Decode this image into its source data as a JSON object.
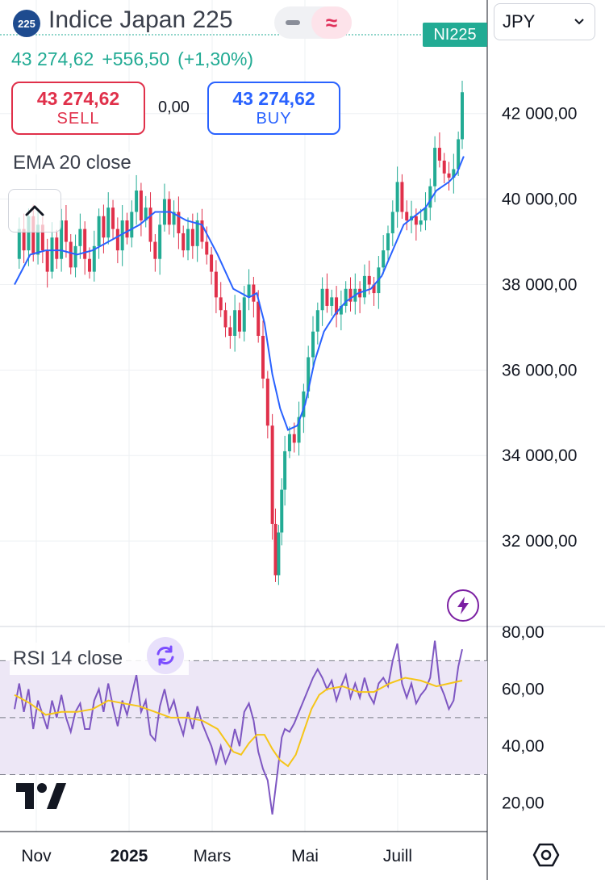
{
  "header": {
    "badge": "225",
    "title": "Indice Japan 225",
    "wave_icon": "≈",
    "currency": "JPY",
    "ticker_tag": "NI225"
  },
  "price": {
    "last": "43 274,62",
    "change": "+556,50",
    "change_pct": "(+1,30%)",
    "color_up": "#22ab94",
    "color_down": "#e0304a"
  },
  "trade": {
    "sell_value": "43 274,62",
    "sell_label": "SELL",
    "spread": "0,00",
    "buy_value": "43 274,62",
    "buy_label": "BUY"
  },
  "indicators": {
    "ema_label": "EMA 20 close",
    "rsi_label": "RSI 14 close"
  },
  "icons": {
    "collapse": "chevron-up-icon",
    "bolt": "lightning-icon",
    "refresh": "refresh-icon",
    "logo": "tradingview-logo",
    "settings": "hexagon-settings-icon"
  },
  "chart_data": [
    {
      "type": "candlestick",
      "title": "Indice Japan 225",
      "ylim": [
        30000,
        43600
      ],
      "yticks": [
        "42 000,00",
        "40 000,00",
        "38 000,00",
        "36 000,00",
        "34 000,00",
        "32 000,00"
      ],
      "ytick_values": [
        42000,
        40000,
        38000,
        36000,
        34000,
        32000
      ],
      "xticks": [
        "Nov",
        "2025",
        "Mars",
        "Mai",
        "Juill"
      ],
      "colors": {
        "up": "#22ab94",
        "down": "#e0304a",
        "ema": "#2962ff"
      },
      "grid": true,
      "path_close": [
        [
          0,
          38600
        ],
        [
          6,
          39300
        ],
        [
          12,
          38800
        ],
        [
          18,
          39600
        ],
        [
          24,
          38700
        ],
        [
          30,
          39400
        ],
        [
          36,
          38800
        ],
        [
          42,
          38300
        ],
        [
          48,
          39100
        ],
        [
          54,
          38600
        ],
        [
          60,
          39500
        ],
        [
          66,
          39000
        ],
        [
          72,
          38400
        ],
        [
          78,
          38900
        ],
        [
          84,
          39300
        ],
        [
          90,
          38600
        ],
        [
          96,
          38300
        ],
        [
          102,
          38900
        ],
        [
          108,
          39600
        ],
        [
          114,
          39100
        ],
        [
          120,
          39800
        ],
        [
          126,
          39300
        ],
        [
          132,
          38800
        ],
        [
          138,
          39500
        ],
        [
          144,
          39100
        ],
        [
          150,
          39700
        ],
        [
          156,
          40200
        ],
        [
          162,
          39500
        ],
        [
          168,
          39800
        ],
        [
          174,
          39000
        ],
        [
          180,
          38600
        ],
        [
          186,
          39400
        ],
        [
          192,
          40000
        ],
        [
          198,
          39400
        ],
        [
          204,
          39700
        ],
        [
          210,
          39200
        ],
        [
          216,
          38800
        ],
        [
          222,
          39300
        ],
        [
          228,
          38900
        ],
        [
          234,
          39500
        ],
        [
          240,
          39000
        ],
        [
          246,
          38700
        ],
        [
          252,
          38300
        ],
        [
          258,
          37700
        ],
        [
          264,
          37400
        ],
        [
          270,
          37000
        ],
        [
          276,
          36800
        ],
        [
          282,
          37400
        ],
        [
          288,
          36900
        ],
        [
          294,
          37700
        ],
        [
          300,
          38000
        ],
        [
          306,
          37600
        ],
        [
          312,
          36800
        ],
        [
          318,
          35800
        ],
        [
          324,
          34700
        ],
        [
          330,
          32400
        ],
        [
          334,
          31200
        ],
        [
          338,
          32200
        ],
        [
          342,
          33200
        ],
        [
          346,
          34100
        ],
        [
          352,
          34500
        ],
        [
          358,
          34300
        ],
        [
          364,
          34900
        ],
        [
          370,
          35500
        ],
        [
          376,
          36300
        ],
        [
          382,
          36900
        ],
        [
          388,
          37400
        ],
        [
          394,
          37900
        ],
        [
          400,
          37500
        ],
        [
          406,
          37700
        ],
        [
          412,
          37300
        ],
        [
          418,
          37500
        ],
        [
          424,
          37900
        ],
        [
          430,
          37600
        ],
        [
          436,
          37900
        ],
        [
          442,
          37700
        ],
        [
          448,
          38200
        ],
        [
          454,
          38000
        ],
        [
          460,
          37800
        ],
        [
          466,
          38400
        ],
        [
          472,
          38800
        ],
        [
          478,
          39200
        ],
        [
          484,
          39700
        ],
        [
          490,
          40400
        ],
        [
          496,
          39700
        ],
        [
          502,
          39500
        ],
        [
          508,
          39600
        ],
        [
          514,
          39400
        ],
        [
          520,
          39500
        ],
        [
          526,
          39800
        ],
        [
          532,
          40300
        ],
        [
          538,
          41200
        ],
        [
          544,
          40900
        ],
        [
          550,
          40600
        ],
        [
          556,
          40500
        ],
        [
          562,
          40700
        ],
        [
          568,
          41400
        ],
        [
          573,
          42500
        ]
      ],
      "ema": [
        [
          0,
          38000
        ],
        [
          20,
          38700
        ],
        [
          40,
          38800
        ],
        [
          60,
          38800
        ],
        [
          80,
          38700
        ],
        [
          100,
          38800
        ],
        [
          120,
          39000
        ],
        [
          140,
          39200
        ],
        [
          160,
          39400
        ],
        [
          180,
          39700
        ],
        [
          200,
          39700
        ],
        [
          220,
          39500
        ],
        [
          240,
          39400
        ],
        [
          260,
          38700
        ],
        [
          280,
          37900
        ],
        [
          300,
          37700
        ],
        [
          310,
          37800
        ],
        [
          320,
          37100
        ],
        [
          330,
          35900
        ],
        [
          340,
          35100
        ],
        [
          350,
          34600
        ],
        [
          362,
          34700
        ],
        [
          372,
          35200
        ],
        [
          384,
          36200
        ],
        [
          396,
          36900
        ],
        [
          410,
          37300
        ],
        [
          424,
          37600
        ],
        [
          440,
          37800
        ],
        [
          456,
          37900
        ],
        [
          470,
          38200
        ],
        [
          484,
          38800
        ],
        [
          498,
          39400
        ],
        [
          512,
          39600
        ],
        [
          526,
          39800
        ],
        [
          540,
          40200
        ],
        [
          556,
          40400
        ],
        [
          566,
          40600
        ],
        [
          575,
          41000
        ]
      ]
    },
    {
      "type": "line",
      "title": "RSI 14 close",
      "ylim": [
        10,
        82
      ],
      "yticks": [
        "80,00",
        "60,00",
        "40,00",
        "20,00"
      ],
      "ytick_values": [
        80,
        60,
        40,
        20
      ],
      "bands": [
        70,
        50,
        30
      ],
      "colors": {
        "rsi": "#7e57c2",
        "signal": "#f5c518",
        "band_fill": "#ede7f6"
      },
      "rsi": [
        [
          0,
          53
        ],
        [
          6,
          62
        ],
        [
          12,
          52
        ],
        [
          18,
          60
        ],
        [
          24,
          46
        ],
        [
          30,
          56
        ],
        [
          36,
          51
        ],
        [
          42,
          46
        ],
        [
          48,
          56
        ],
        [
          54,
          50
        ],
        [
          60,
          58
        ],
        [
          66,
          50
        ],
        [
          72,
          45
        ],
        [
          78,
          52
        ],
        [
          84,
          55
        ],
        [
          90,
          46
        ],
        [
          96,
          46
        ],
        [
          102,
          56
        ],
        [
          108,
          60
        ],
        [
          114,
          52
        ],
        [
          120,
          62
        ],
        [
          126,
          54
        ],
        [
          132,
          47
        ],
        [
          138,
          56
        ],
        [
          144,
          51
        ],
        [
          150,
          58
        ],
        [
          156,
          65
        ],
        [
          162,
          52
        ],
        [
          168,
          56
        ],
        [
          174,
          44
        ],
        [
          180,
          42
        ],
        [
          186,
          54
        ],
        [
          192,
          60
        ],
        [
          198,
          52
        ],
        [
          204,
          56
        ],
        [
          210,
          49
        ],
        [
          216,
          44
        ],
        [
          222,
          52
        ],
        [
          228,
          46
        ],
        [
          234,
          54
        ],
        [
          240,
          48
        ],
        [
          246,
          44
        ],
        [
          252,
          40
        ],
        [
          258,
          34
        ],
        [
          264,
          40
        ],
        [
          270,
          34
        ],
        [
          276,
          38
        ],
        [
          282,
          46
        ],
        [
          288,
          40
        ],
        [
          294,
          52
        ],
        [
          300,
          55
        ],
        [
          306,
          49
        ],
        [
          312,
          38
        ],
        [
          318,
          32
        ],
        [
          324,
          28
        ],
        [
          330,
          16
        ],
        [
          334,
          25
        ],
        [
          338,
          34
        ],
        [
          342,
          43
        ],
        [
          346,
          46
        ],
        [
          352,
          45
        ],
        [
          358,
          48
        ],
        [
          364,
          52
        ],
        [
          370,
          56
        ],
        [
          376,
          60
        ],
        [
          382,
          64
        ],
        [
          388,
          67
        ],
        [
          394,
          64
        ],
        [
          400,
          60
        ],
        [
          406,
          63
        ],
        [
          412,
          56
        ],
        [
          418,
          61
        ],
        [
          424,
          65
        ],
        [
          430,
          57
        ],
        [
          436,
          62
        ],
        [
          442,
          57
        ],
        [
          448,
          64
        ],
        [
          454,
          58
        ],
        [
          460,
          55
        ],
        [
          466,
          62
        ],
        [
          472,
          64
        ],
        [
          478,
          61
        ],
        [
          484,
          70
        ],
        [
          490,
          76
        ],
        [
          496,
          62
        ],
        [
          502,
          57
        ],
        [
          508,
          62
        ],
        [
          514,
          55
        ],
        [
          520,
          58
        ],
        [
          526,
          60
        ],
        [
          532,
          64
        ],
        [
          538,
          77
        ],
        [
          544,
          62
        ],
        [
          550,
          58
        ],
        [
          556,
          53
        ],
        [
          562,
          56
        ],
        [
          568,
          68
        ],
        [
          573,
          74
        ]
      ],
      "signal": [
        [
          0,
          58
        ],
        [
          20,
          55
        ],
        [
          40,
          51
        ],
        [
          60,
          52
        ],
        [
          80,
          52
        ],
        [
          100,
          53
        ],
        [
          120,
          56
        ],
        [
          140,
          55
        ],
        [
          160,
          54
        ],
        [
          180,
          52
        ],
        [
          200,
          50
        ],
        [
          220,
          50
        ],
        [
          240,
          49
        ],
        [
          260,
          46
        ],
        [
          280,
          38
        ],
        [
          290,
          37
        ],
        [
          300,
          41
        ],
        [
          310,
          44
        ],
        [
          320,
          44
        ],
        [
          330,
          39
        ],
        [
          340,
          35
        ],
        [
          350,
          33
        ],
        [
          360,
          37
        ],
        [
          370,
          45
        ],
        [
          380,
          53
        ],
        [
          390,
          58
        ],
        [
          400,
          60
        ],
        [
          420,
          61
        ],
        [
          440,
          59
        ],
        [
          460,
          59
        ],
        [
          480,
          62
        ],
        [
          500,
          64
        ],
        [
          520,
          63
        ],
        [
          540,
          61
        ],
        [
          556,
          62
        ],
        [
          573,
          63
        ]
      ]
    }
  ]
}
